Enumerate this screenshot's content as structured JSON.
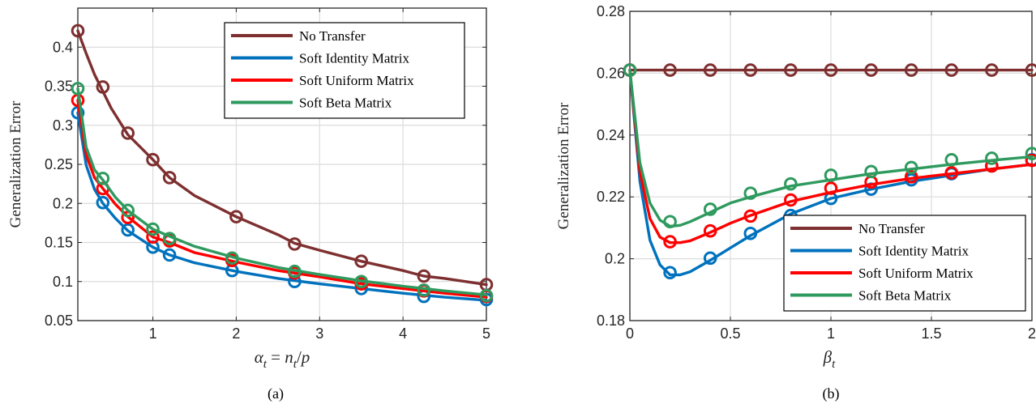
{
  "colors": {
    "no_transfer": "#7e2f2f",
    "soft_identity": "#0072bd",
    "soft_uniform": "#ff0000",
    "soft_beta": "#2e9a5e",
    "grid": "#dcdcdc",
    "axis": "#262626"
  },
  "chart_data": [
    {
      "type": "line",
      "caption": "(a)",
      "xlabel": "α_t = n_t/p",
      "xlabel_parts": {
        "alpha": "α",
        "t1": "t",
        "eq": " = ",
        "n": "n",
        "t2": "t",
        "slash": "/",
        "p": "p"
      },
      "ylabel": "Generalization Error",
      "xlim": [
        0.1,
        5
      ],
      "ylim": [
        0.05,
        0.45
      ],
      "xticks": [
        1,
        2,
        3,
        4,
        5
      ],
      "yticks": [
        0.05,
        0.1,
        0.15,
        0.2,
        0.25,
        0.3,
        0.35,
        0.4
      ],
      "xtick_labels": [
        "1",
        "2",
        "3",
        "4",
        "5"
      ],
      "ytick_labels": [
        "0.05",
        "0.1",
        "0.15",
        "0.2",
        "0.25",
        "0.3",
        "0.35",
        "0.4"
      ],
      "grid": true,
      "legend_position": "top-right",
      "series": [
        {
          "name": "No Transfer",
          "color_key": "no_transfer",
          "x": [
            0.1,
            0.2,
            0.3,
            0.5,
            0.7,
            1.0,
            1.2,
            1.5,
            2.0,
            2.5,
            2.7,
            3.0,
            3.5,
            4.0,
            4.25,
            4.5,
            5.0
          ],
          "y": [
            0.421,
            0.392,
            0.365,
            0.322,
            0.288,
            0.256,
            0.233,
            0.21,
            0.183,
            0.16,
            0.149,
            0.14,
            0.126,
            0.114,
            0.107,
            0.104,
            0.096
          ],
          "marker_x": [
            0.1,
            0.4,
            0.7,
            1.0,
            1.2,
            2.0,
            2.7,
            3.5,
            4.25,
            5.0
          ],
          "marker_y": [
            0.421,
            0.349,
            0.29,
            0.256,
            0.233,
            0.183,
            0.148,
            0.126,
            0.107,
            0.096
          ]
        },
        {
          "name": "Soft Identity Matrix",
          "color_key": "soft_identity",
          "x": [
            0.1,
            0.2,
            0.3,
            0.4,
            0.55,
            0.7,
            1.0,
            1.2,
            1.5,
            2.0,
            2.5,
            3.0,
            3.5,
            4.0,
            4.5,
            5.0
          ],
          "y": [
            0.316,
            0.249,
            0.218,
            0.2,
            0.181,
            0.165,
            0.144,
            0.134,
            0.124,
            0.113,
            0.104,
            0.097,
            0.091,
            0.085,
            0.08,
            0.076
          ],
          "marker_x": [
            0.1,
            0.4,
            0.7,
            1.0,
            1.2,
            1.95,
            2.7,
            3.5,
            4.25,
            5.0
          ],
          "marker_y": [
            0.316,
            0.201,
            0.166,
            0.144,
            0.134,
            0.114,
            0.1,
            0.091,
            0.081,
            0.077
          ]
        },
        {
          "name": "Soft Uniform Matrix",
          "color_key": "soft_uniform",
          "x": [
            0.1,
            0.2,
            0.3,
            0.4,
            0.55,
            0.7,
            1.0,
            1.2,
            1.5,
            2.0,
            2.5,
            3.0,
            3.5,
            4.0,
            4.5,
            5.0
          ],
          "y": [
            0.332,
            0.262,
            0.233,
            0.219,
            0.199,
            0.183,
            0.157,
            0.15,
            0.137,
            0.125,
            0.114,
            0.106,
            0.097,
            0.091,
            0.085,
            0.08
          ],
          "marker_x": [
            0.1,
            0.4,
            0.7,
            1.0,
            1.2,
            1.95,
            2.7,
            3.5,
            4.25,
            5.0
          ],
          "marker_y": [
            0.332,
            0.219,
            0.182,
            0.157,
            0.152,
            0.127,
            0.111,
            0.097,
            0.088,
            0.081
          ]
        },
        {
          "name": "Soft Beta Matrix",
          "color_key": "soft_beta",
          "x": [
            0.1,
            0.2,
            0.3,
            0.4,
            0.55,
            0.7,
            1.0,
            1.2,
            1.5,
            2.0,
            2.5,
            3.0,
            3.5,
            4.0,
            4.5,
            5.0
          ],
          "y": [
            0.347,
            0.272,
            0.243,
            0.23,
            0.208,
            0.191,
            0.167,
            0.158,
            0.145,
            0.13,
            0.118,
            0.109,
            0.101,
            0.094,
            0.088,
            0.083
          ],
          "marker_x": [
            0.1,
            0.4,
            0.7,
            1.0,
            1.2,
            1.95,
            2.7,
            3.5,
            4.25,
            5.0
          ],
          "marker_y": [
            0.347,
            0.232,
            0.191,
            0.167,
            0.155,
            0.13,
            0.113,
            0.1,
            0.089,
            0.082
          ]
        }
      ]
    },
    {
      "type": "line",
      "caption": "(b)",
      "xlabel": "β_t",
      "xlabel_parts": {
        "beta": "β",
        "t": "t"
      },
      "ylabel": "Generalization Error",
      "xlim": [
        0,
        2
      ],
      "ylim": [
        0.18,
        0.28
      ],
      "xticks": [
        0,
        0.5,
        1,
        1.5,
        2
      ],
      "yticks": [
        0.18,
        0.2,
        0.22,
        0.24,
        0.26,
        0.28
      ],
      "xtick_labels": [
        "0",
        "0.5",
        "1",
        "1.5",
        "2"
      ],
      "ytick_labels": [
        "0.18",
        "0.2",
        "0.22",
        "0.24",
        "0.26",
        "0.28"
      ],
      "grid": true,
      "legend_position": "bottom-right",
      "series": [
        {
          "name": "No Transfer",
          "color_key": "no_transfer",
          "x": [
            0,
            2
          ],
          "y": [
            0.261,
            0.261
          ],
          "marker_x": [
            0,
            0.2,
            0.4,
            0.6,
            0.8,
            1.0,
            1.2,
            1.4,
            1.6,
            1.8,
            2.0
          ],
          "marker_y": [
            0.261,
            0.261,
            0.261,
            0.261,
            0.261,
            0.261,
            0.261,
            0.261,
            0.261,
            0.261,
            0.261
          ]
        },
        {
          "name": "Soft Identity Matrix",
          "color_key": "soft_identity",
          "x": [
            0,
            0.05,
            0.1,
            0.15,
            0.2,
            0.25,
            0.3,
            0.4,
            0.5,
            0.6,
            0.8,
            1.0,
            1.2,
            1.4,
            1.6,
            1.8,
            2.0
          ],
          "y": [
            0.261,
            0.225,
            0.206,
            0.198,
            0.1948,
            0.1948,
            0.1958,
            0.1995,
            0.2035,
            0.2075,
            0.2145,
            0.2195,
            0.2225,
            0.225,
            0.227,
            0.229,
            0.2305
          ],
          "marker_x": [
            0,
            0.2,
            0.4,
            0.6,
            0.8,
            1.0,
            1.2,
            1.4,
            1.6,
            1.8,
            2.0
          ],
          "marker_y": [
            0.261,
            0.1955,
            0.2002,
            0.2082,
            0.214,
            0.2195,
            0.2225,
            0.2255,
            0.2275,
            0.23,
            0.232
          ]
        },
        {
          "name": "Soft Uniform Matrix",
          "color_key": "soft_uniform",
          "x": [
            0,
            0.05,
            0.1,
            0.15,
            0.2,
            0.25,
            0.3,
            0.4,
            0.5,
            0.6,
            0.8,
            1.0,
            1.2,
            1.4,
            1.6,
            1.8,
            2.0
          ],
          "y": [
            0.261,
            0.228,
            0.213,
            0.207,
            0.2052,
            0.2052,
            0.2058,
            0.2085,
            0.2115,
            0.214,
            0.2185,
            0.2215,
            0.224,
            0.226,
            0.2275,
            0.229,
            0.2305
          ],
          "marker_x": [
            0,
            0.2,
            0.4,
            0.6,
            0.8,
            1.0,
            1.2,
            1.4,
            1.6,
            1.8,
            2.0
          ],
          "marker_y": [
            0.261,
            0.2055,
            0.209,
            0.2138,
            0.219,
            0.2228,
            0.2248,
            0.2265,
            0.2278,
            0.23,
            0.2318
          ]
        },
        {
          "name": "Soft Beta Matrix",
          "color_key": "soft_beta",
          "x": [
            0,
            0.05,
            0.1,
            0.15,
            0.2,
            0.25,
            0.3,
            0.4,
            0.5,
            0.6,
            0.8,
            1.0,
            1.2,
            1.4,
            1.6,
            1.8,
            2.0
          ],
          "y": [
            0.261,
            0.231,
            0.218,
            0.2125,
            0.2105,
            0.2108,
            0.212,
            0.215,
            0.218,
            0.22,
            0.2235,
            0.2255,
            0.2275,
            0.229,
            0.2305,
            0.2318,
            0.233
          ],
          "marker_x": [
            0,
            0.2,
            0.4,
            0.6,
            0.8,
            1.0,
            1.2,
            1.4,
            1.6,
            1.8,
            2.0
          ],
          "marker_y": [
            0.261,
            0.212,
            0.216,
            0.2212,
            0.2242,
            0.227,
            0.2282,
            0.2295,
            0.232,
            0.2325,
            0.234
          ]
        }
      ]
    }
  ]
}
